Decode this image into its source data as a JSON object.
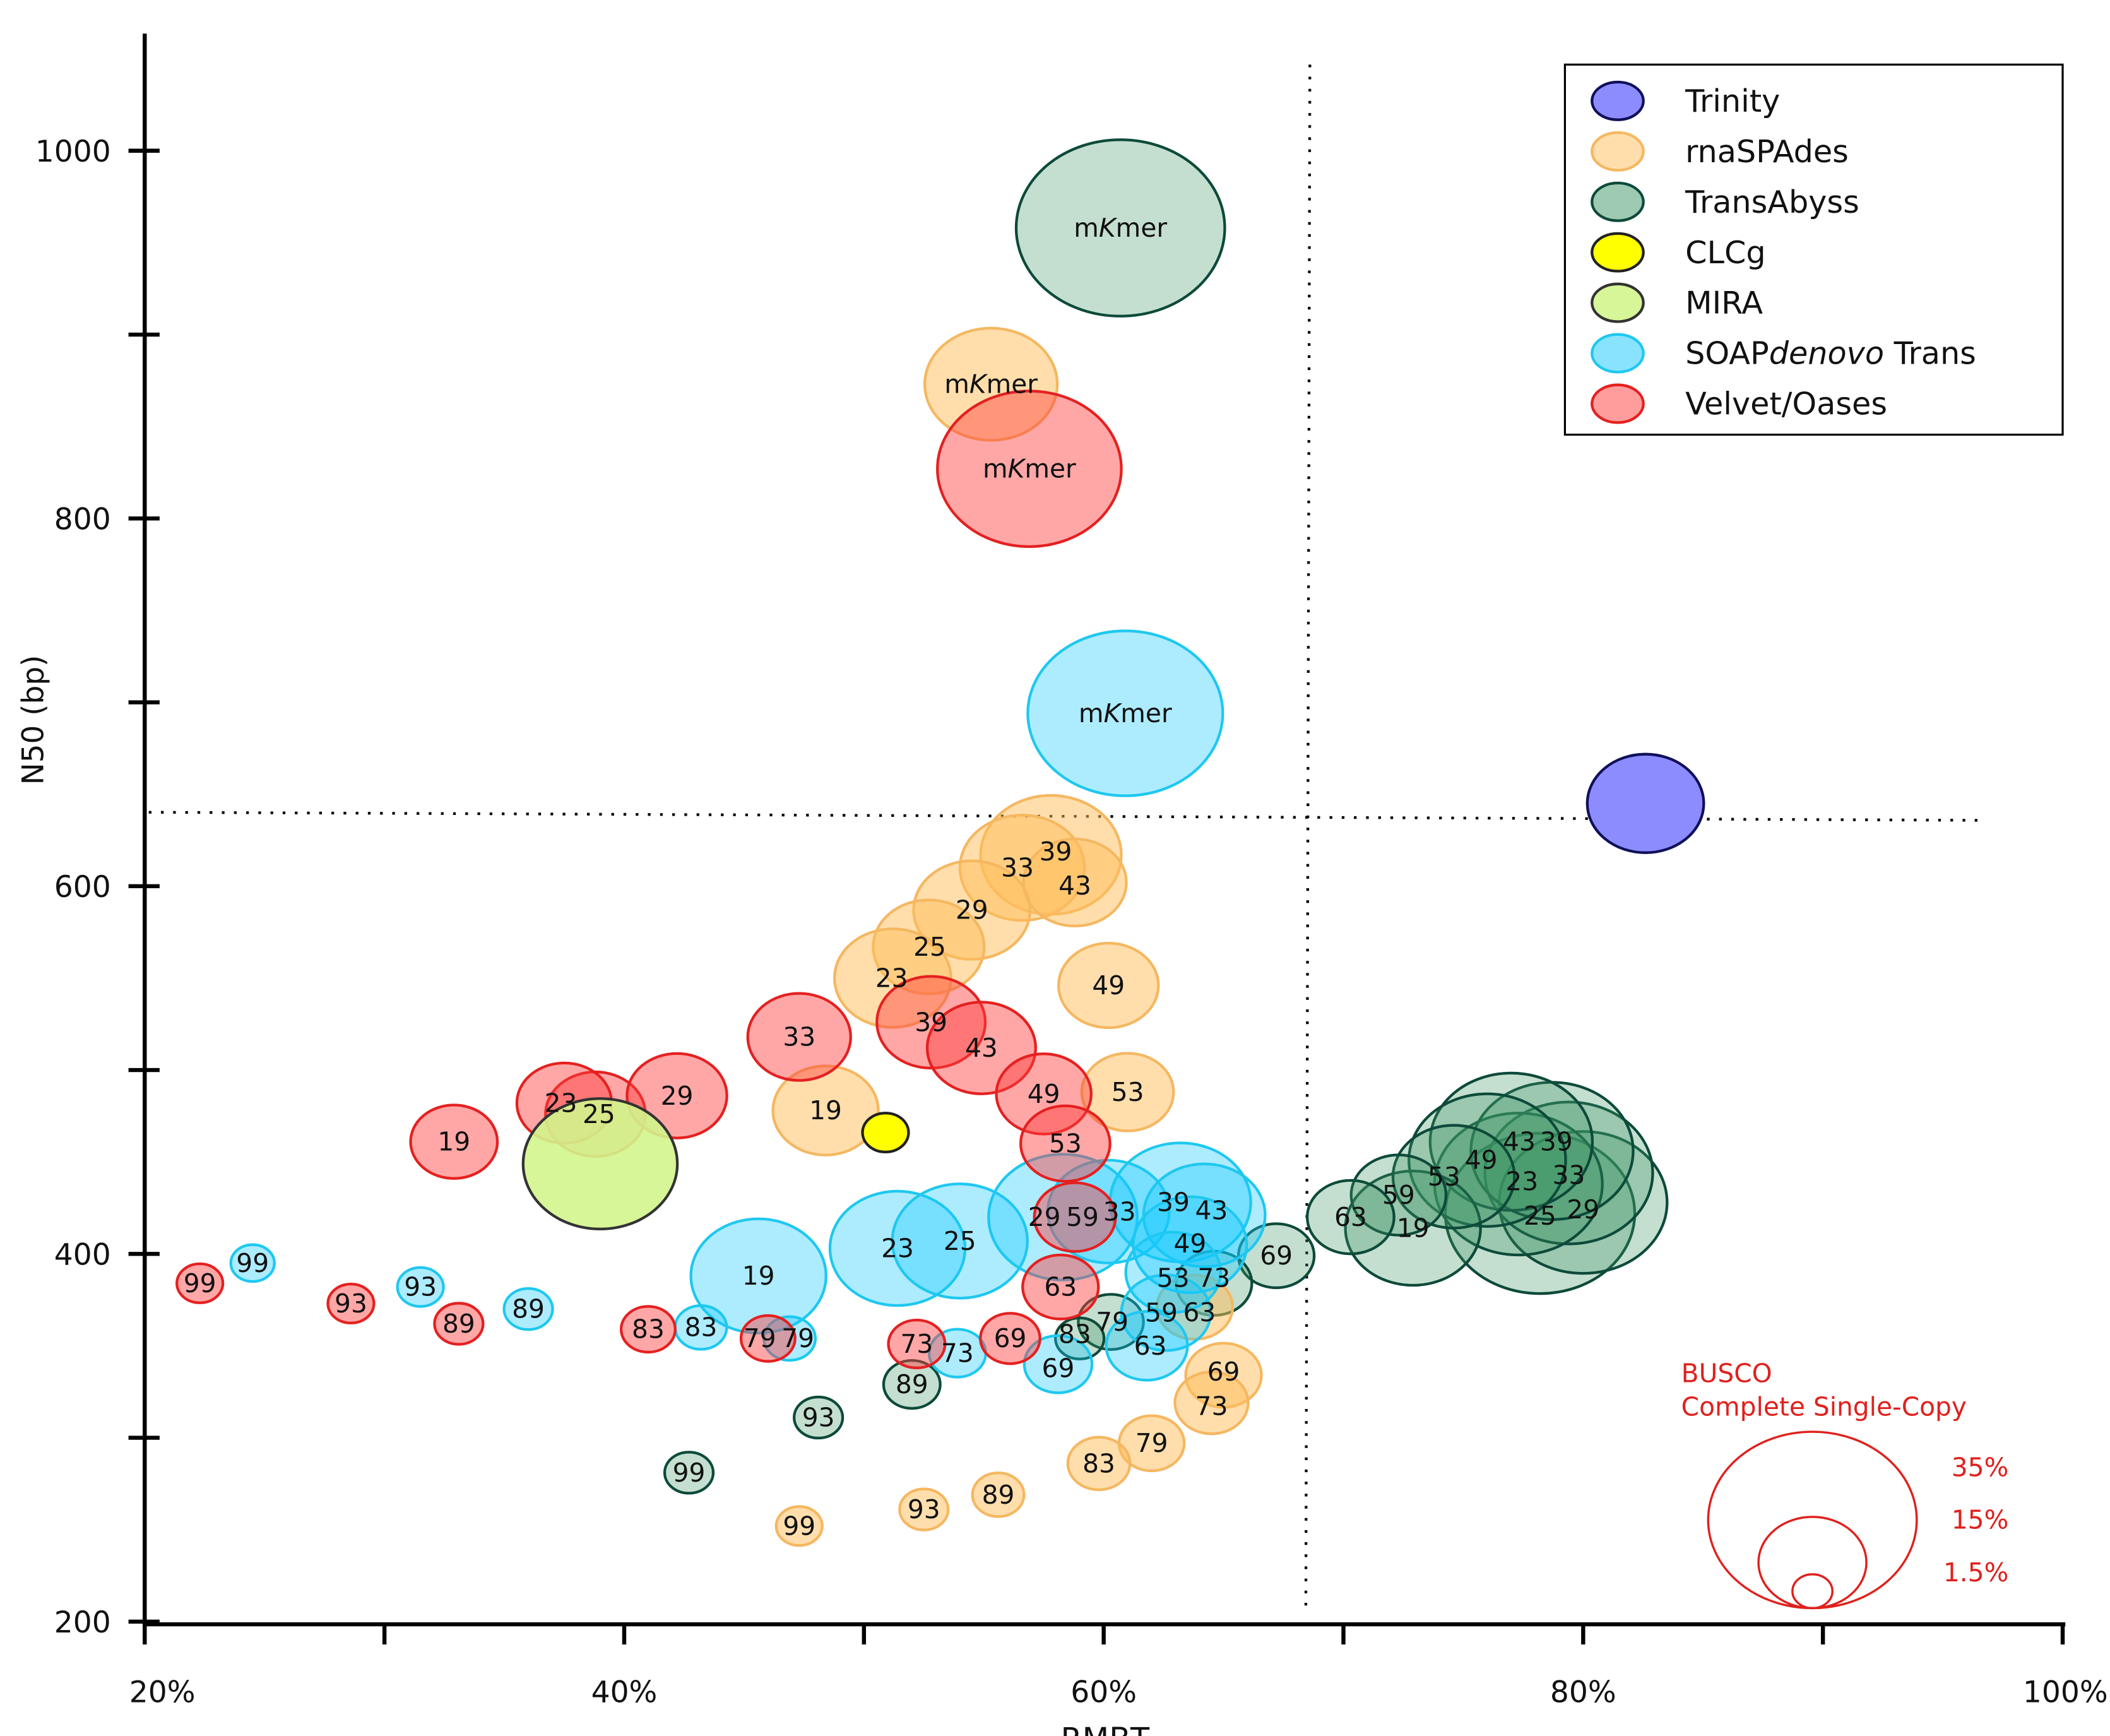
{
  "chart_data": {
    "type": "scatter",
    "subtype": "bubble",
    "xlabel": "RMBT",
    "ylabel": "N50 (bp)",
    "xlim": [
      20,
      100
    ],
    "ylim": [
      200,
      1060
    ],
    "x_ticks": [
      20,
      30,
      40,
      50,
      60,
      70,
      80,
      90,
      100
    ],
    "x_tick_labels": [
      "20%",
      "",
      "40%",
      "",
      "60%",
      "",
      "80%",
      "",
      "100%"
    ],
    "y_ticks": [
      200,
      300,
      400,
      500,
      600,
      700,
      800,
      900,
      1000
    ],
    "y_tick_labels": [
      "200",
      "",
      "400",
      "",
      "600",
      "",
      "800",
      "",
      "1000"
    ],
    "reference_lines": {
      "vertical_x": 68.6,
      "horizontal_y": 638
    },
    "bubble_size_meaning": "BUSCO Complete Single-Copy (%)",
    "size_legend": {
      "title_line1": "BUSCO",
      "title_line2": "Complete Single-Copy",
      "values": [
        35,
        15,
        1.5
      ],
      "labels": [
        "35%",
        "15%",
        "1.5%"
      ]
    },
    "legend_position": "top-right",
    "series": [
      {
        "name": "TransAbyss",
        "fill": "#3c9664",
        "stroke": "#0d4a3a",
        "opacity": 0.3,
        "points": [
          {
            "label": "mKmer",
            "x": 60.7,
            "y": 958,
            "busco": 35.0
          },
          {
            "label": "25",
            "x": 78.2,
            "y": 422,
            "busco": 31.2
          },
          {
            "label": "29",
            "x": 80.0,
            "y": 428,
            "busco": 26.9
          },
          {
            "label": "33",
            "x": 79.4,
            "y": 444,
            "busco": 26.9
          },
          {
            "label": "23",
            "x": 77.3,
            "y": 438,
            "busco": 26.9
          },
          {
            "label": "39",
            "x": 78.7,
            "y": 456,
            "busco": 25.8
          },
          {
            "label": "43",
            "x": 77.0,
            "y": 461,
            "busco": 25.8
          },
          {
            "label": "49",
            "x": 76.0,
            "y": 451,
            "busco": 24.7
          },
          {
            "label": "19",
            "x": 72.9,
            "y": 414,
            "busco": 20.4
          },
          {
            "label": "53",
            "x": 74.6,
            "y": 442,
            "busco": 17.7
          },
          {
            "label": "59",
            "x": 72.3,
            "y": 432,
            "busco": 12.4
          },
          {
            "label": "63",
            "x": 70.3,
            "y": 420,
            "busco": 10.8
          },
          {
            "label": "69",
            "x": 67.2,
            "y": 399,
            "busco": 8.6
          },
          {
            "label": "73",
            "x": 64.6,
            "y": 384,
            "busco": 8.6
          },
          {
            "label": "79",
            "x": 60.3,
            "y": 363,
            "busco": 6.5
          },
          {
            "label": "83",
            "x": 59.0,
            "y": 354,
            "busco": 3.2
          },
          {
            "label": "89",
            "x": 52.0,
            "y": 329,
            "busco": 4.8
          },
          {
            "label": "93",
            "x": 48.1,
            "y": 311,
            "busco": 3.2
          },
          {
            "label": "99",
            "x": 42.7,
            "y": 281,
            "busco": 3.2
          }
        ]
      },
      {
        "name": "rnaSPAdes",
        "fill": "#ffbe5a",
        "stroke": "#f5b760",
        "opacity": 0.5,
        "points": [
          {
            "label": "mKmer",
            "x": 55.3,
            "y": 873,
            "busco": 19.9
          },
          {
            "label": "39",
            "x": 57.8,
            "y": 617,
            "busco": 21.5
          },
          {
            "label": "33",
            "x": 56.6,
            "y": 610,
            "busco": 18.3
          },
          {
            "label": "43",
            "x": 58.8,
            "y": 602,
            "busco": 14.0
          },
          {
            "label": "29",
            "x": 54.5,
            "y": 587,
            "busco": 16.7
          },
          {
            "label": "25",
            "x": 52.7,
            "y": 567,
            "busco": 15.6
          },
          {
            "label": "23",
            "x": 51.2,
            "y": 550,
            "busco": 16.7
          },
          {
            "label": "49",
            "x": 60.2,
            "y": 546,
            "busco": 13.4
          },
          {
            "label": "53",
            "x": 61.0,
            "y": 488,
            "busco": 11.8
          },
          {
            "label": "19",
            "x": 48.4,
            "y": 478,
            "busco": 14.5
          },
          {
            "label": "63",
            "x": 63.8,
            "y": 371,
            "busco": 8.6
          },
          {
            "label": "69",
            "x": 65.0,
            "y": 334,
            "busco": 8.6
          },
          {
            "label": "73",
            "x": 64.5,
            "y": 319,
            "busco": 8.1
          },
          {
            "label": "79",
            "x": 62.0,
            "y": 297,
            "busco": 6.5
          },
          {
            "label": "83",
            "x": 59.8,
            "y": 286,
            "busco": 5.9
          },
          {
            "label": "89",
            "x": 55.6,
            "y": 269,
            "busco": 3.8
          },
          {
            "label": "93",
            "x": 52.5,
            "y": 261,
            "busco": 3.2
          },
          {
            "label": "99",
            "x": 47.3,
            "y": 252,
            "busco": 2.7
          }
        ]
      },
      {
        "name": "SOAPdenovo Trans",
        "fill": "#14c8ff",
        "stroke": "#1ec8f0",
        "opacity": 0.35,
        "points": [
          {
            "label": "mKmer",
            "x": 60.9,
            "y": 694,
            "busco": 32.3
          },
          {
            "label": "29",
            "x": 58.3,
            "y": 420,
            "busco": 23.1
          },
          {
            "label": "39",
            "x": 63.2,
            "y": 428,
            "busco": 21.5
          },
          {
            "label": "19",
            "x": 45.6,
            "y": 388,
            "busco": 20.4
          },
          {
            "label": "23",
            "x": 51.4,
            "y": 403,
            "busco": 20.4
          },
          {
            "label": "25",
            "x": 54.0,
            "y": 407,
            "busco": 20.4
          },
          {
            "label": "33",
            "x": 60.2,
            "y": 423,
            "busco": 17.7
          },
          {
            "label": "43",
            "x": 64.2,
            "y": 421,
            "busco": 17.7
          },
          {
            "label": "49",
            "x": 63.6,
            "y": 405,
            "busco": 16.1
          },
          {
            "label": "53",
            "x": 62.9,
            "y": 390,
            "busco": 12.4
          },
          {
            "label": "59",
            "x": 62.6,
            "y": 368,
            "busco": 11.3
          },
          {
            "label": "63",
            "x": 61.8,
            "y": 350,
            "busco": 9.7
          },
          {
            "label": "69",
            "x": 58.1,
            "y": 340,
            "busco": 7.0
          },
          {
            "label": "73",
            "x": 53.9,
            "y": 346,
            "busco": 4.8
          },
          {
            "label": "79",
            "x": 46.9,
            "y": 354,
            "busco": 3.8
          },
          {
            "label": "83",
            "x": 43.2,
            "y": 360,
            "busco": 3.8
          },
          {
            "label": "89",
            "x": 36.0,
            "y": 370,
            "busco": 3.2
          },
          {
            "label": "93",
            "x": 31.5,
            "y": 382,
            "busco": 2.7
          },
          {
            "label": "99",
            "x": 24.5,
            "y": 395,
            "busco": 2.2
          }
        ]
      },
      {
        "name": "Velvet/Oases",
        "fill": "#ff3c3c",
        "stroke": "#e52020",
        "opacity": 0.45,
        "points": [
          {
            "label": "mKmer",
            "x": 56.9,
            "y": 827,
            "busco": 30.1
          },
          {
            "label": "39",
            "x": 52.8,
            "y": 526,
            "busco": 15.1
          },
          {
            "label": "43",
            "x": 54.9,
            "y": 512,
            "busco": 15.1
          },
          {
            "label": "33",
            "x": 47.3,
            "y": 518,
            "busco": 14.0
          },
          {
            "label": "25",
            "x": 38.8,
            "y": 476,
            "busco": 13.4
          },
          {
            "label": "29",
            "x": 42.2,
            "y": 486,
            "busco": 13.4
          },
          {
            "label": "23",
            "x": 37.5,
            "y": 482,
            "busco": 12.4
          },
          {
            "label": "49",
            "x": 57.5,
            "y": 487,
            "busco": 12.4
          },
          {
            "label": "53",
            "x": 58.4,
            "y": 460,
            "busco": 11.3
          },
          {
            "label": "19",
            "x": 32.9,
            "y": 461,
            "busco": 10.8
          },
          {
            "label": "59",
            "x": 58.8,
            "y": 420,
            "busco": 9.7
          },
          {
            "label": "63",
            "x": 58.2,
            "y": 382,
            "busco": 8.6
          },
          {
            "label": "69",
            "x": 56.1,
            "y": 354,
            "busco": 5.4
          },
          {
            "label": "73",
            "x": 52.2,
            "y": 351,
            "busco": 4.8
          },
          {
            "label": "79",
            "x": 46.0,
            "y": 354,
            "busco": 4.3
          },
          {
            "label": "83",
            "x": 41.0,
            "y": 359,
            "busco": 4.3
          },
          {
            "label": "89",
            "x": 33.1,
            "y": 362,
            "busco": 3.2
          },
          {
            "label": "93",
            "x": 28.6,
            "y": 373,
            "busco": 2.7
          },
          {
            "label": "99",
            "x": 22.3,
            "y": 384,
            "busco": 2.7
          }
        ]
      },
      {
        "name": "MIRA",
        "fill": "#d2f58c",
        "stroke": "#333333",
        "opacity": 0.9,
        "points": [
          {
            "label": "",
            "x": 39.0,
            "y": 449,
            "busco": 24.2
          }
        ]
      },
      {
        "name": "CLCg",
        "fill": "#ffff00",
        "stroke": "#222222",
        "opacity": 1,
        "points": [
          {
            "label": "",
            "x": 50.9,
            "y": 466,
            "busco": 2.7
          }
        ]
      },
      {
        "name": "Trinity",
        "fill": "#8c8cff",
        "stroke": "#10105a",
        "opacity": 1,
        "points": [
          {
            "label": "",
            "x": 82.6,
            "y": 645,
            "busco": 16.7
          }
        ]
      }
    ],
    "legend_order": [
      "Trinity",
      "rnaSPAdes",
      "TransAbyss",
      "CLCg",
      "MIRA",
      "SOAPdenovo Trans",
      "Velvet/Oases"
    ]
  }
}
